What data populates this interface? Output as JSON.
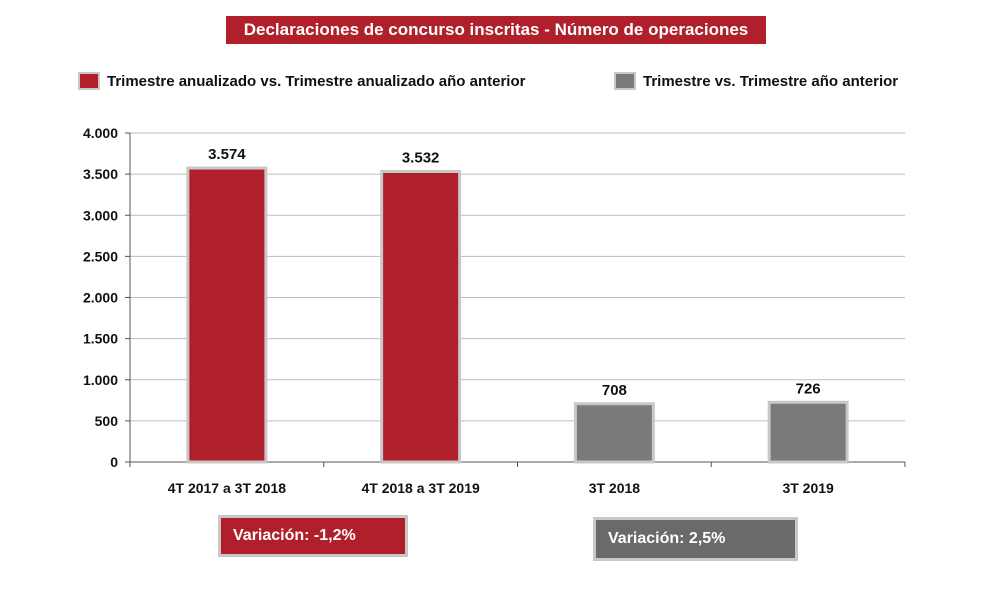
{
  "chart_data": {
    "type": "bar",
    "title": "Declaraciones de concurso inscritas - Número de operaciones",
    "categories": [
      "4T 2017 a 3T 2018",
      "4T 2018 a 3T 2019",
      "3T 2018",
      "3T 2019"
    ],
    "values": [
      3574,
      3532,
      708,
      726
    ],
    "value_labels": [
      "3.574",
      "3.532",
      "708",
      "726"
    ],
    "bar_series": [
      0,
      0,
      1,
      1
    ],
    "series": [
      {
        "name": "Trimestre anualizado vs. Trimestre anualizado año anterior",
        "color": "#b0202a"
      },
      {
        "name": "Trimestre vs. Trimestre año anterior",
        "color": "#7a7a7a"
      }
    ],
    "ylim": [
      0,
      4000
    ],
    "yticks": [
      0,
      500,
      1000,
      1500,
      2000,
      2500,
      3000,
      3500,
      4000
    ],
    "ytick_labels": [
      "0",
      "500",
      "1.000",
      "1.500",
      "2.000",
      "2.500",
      "3.000",
      "3.500",
      "4.000"
    ],
    "grid": true,
    "legend_position": "top",
    "xlabel": "",
    "ylabel": ""
  },
  "annotations": {
    "variation_red": "Variación:  -1,2%",
    "variation_grey": "Variación: 2,5%"
  }
}
